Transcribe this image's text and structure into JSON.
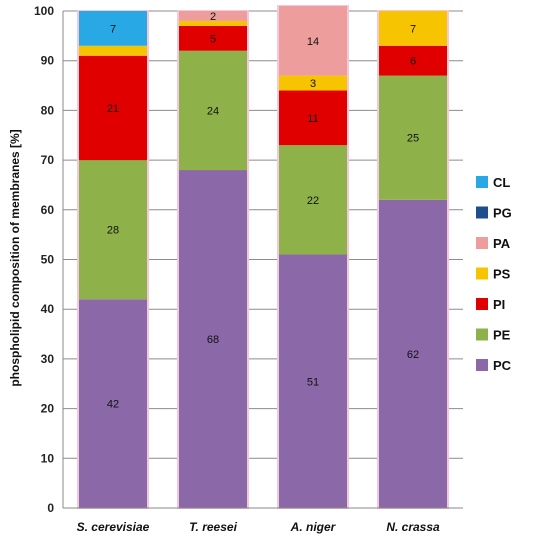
{
  "chart_data": {
    "type": "bar",
    "stacked": true,
    "ylabel": "phospholipid composition of membranes [%]",
    "ylim": [
      0,
      100
    ],
    "yticks": [
      0,
      10,
      20,
      30,
      40,
      50,
      60,
      70,
      80,
      90,
      100
    ],
    "grid": true,
    "legend_position": "right",
    "categories": [
      "S. cerevisiae",
      "T. reesei",
      "A. niger",
      "N. crassa"
    ],
    "series": [
      {
        "name": "PC",
        "color": "#8B68A8",
        "values": [
          42,
          68,
          51,
          62
        ],
        "labels": [
          "42",
          "68",
          "51",
          "62"
        ]
      },
      {
        "name": "PE",
        "color": "#8EB14A",
        "values": [
          28,
          24,
          22,
          25
        ],
        "labels": [
          "28",
          "24",
          "22",
          "25"
        ]
      },
      {
        "name": "PI",
        "color": "#E00000",
        "values": [
          21,
          5,
          11,
          6
        ],
        "labels": [
          "21",
          "5",
          "11",
          "6"
        ]
      },
      {
        "name": "PS",
        "color": "#F6C400",
        "values": [
          2,
          1,
          3,
          7
        ],
        "labels": [
          "",
          "",
          "3",
          "7"
        ]
      },
      {
        "name": "PA",
        "color": "#EE9D9D",
        "values": [
          0,
          2,
          14,
          0
        ],
        "labels": [
          "",
          "2",
          "14",
          ""
        ]
      },
      {
        "name": "PG",
        "color": "#1F4E8C",
        "values": [
          0,
          0,
          0,
          0
        ],
        "labels": [
          "",
          "",
          "",
          ""
        ]
      },
      {
        "name": "CL",
        "color": "#28A9E6",
        "values": [
          7,
          0,
          0,
          0
        ],
        "labels": [
          "7",
          "",
          "",
          ""
        ]
      }
    ],
    "legend_order": [
      "CL",
      "PG",
      "PA",
      "PS",
      "PI",
      "PE",
      "PC"
    ]
  }
}
